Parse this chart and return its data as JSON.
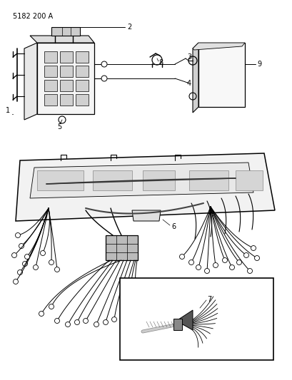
{
  "title_code": "5182 200 A",
  "bg_color": "#ffffff",
  "line_color": "#000000",
  "fig_width": 4.1,
  "fig_height": 5.33,
  "dpi": 100
}
